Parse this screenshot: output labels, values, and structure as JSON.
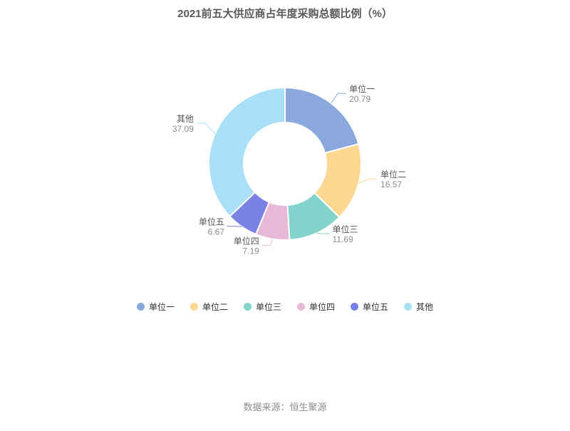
{
  "title": "2021前五大供应商占年度采购总额比例（%）",
  "footer": {
    "source_label": "数据来源：恒生聚源"
  },
  "chart_data": {
    "type": "pie",
    "subtype": "donut",
    "title": "2021前五大供应商占年度采购总额比例（%）",
    "unit": "%",
    "legend_position": "bottom",
    "start_angle_deg": 90,
    "clockwise": true,
    "categories": [
      "单位一",
      "单位二",
      "单位三",
      "单位四",
      "单位五",
      "其他"
    ],
    "values": [
      20.79,
      16.57,
      11.69,
      7.19,
      6.67,
      37.09
    ],
    "colors": [
      "#8aa8db",
      "#fcd892",
      "#82d3cb",
      "#e8b8d8",
      "#7b82e6",
      "#a9e0f8"
    ],
    "label_name_color": "#565656",
    "label_value_color": "#8c8c8c"
  }
}
